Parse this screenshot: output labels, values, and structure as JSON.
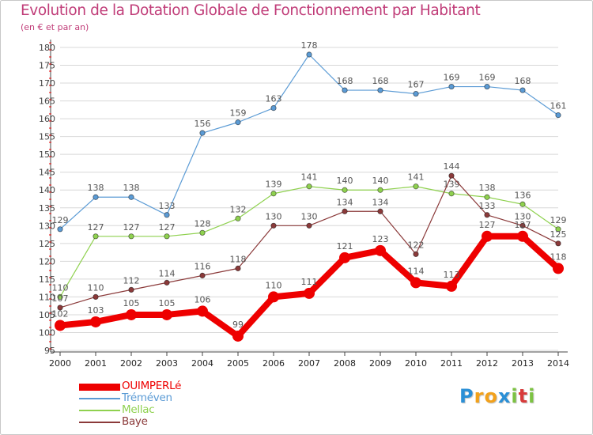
{
  "header": {
    "title": "Evolution de la Dotation Globale de Fonctionnement par Habitant",
    "subtitle": "(en € et par an)"
  },
  "logo": {
    "letters": [
      "P",
      "r",
      "o",
      "x",
      "i",
      "t",
      "i"
    ],
    "colors": [
      "#2a8fd6",
      "#f2a11b",
      "#f2a11b",
      "#2a8fd6",
      "#7cc242",
      "#d83b3b",
      "#7cc242"
    ]
  },
  "colors": {
    "title": "#c03c78",
    "axis": "#6a6a6a",
    "grid": "#d8d8d8",
    "border": "#c8c8c8"
  },
  "chart_data": {
    "type": "line",
    "x": [
      2000,
      2001,
      2002,
      2003,
      2004,
      2005,
      2006,
      2007,
      2008,
      2009,
      2010,
      2011,
      2012,
      2013,
      2014
    ],
    "ylim": [
      95,
      180
    ],
    "yticks": [
      95,
      100,
      105,
      110,
      115,
      120,
      125,
      130,
      135,
      140,
      145,
      150,
      155,
      160,
      165,
      170,
      175,
      180
    ],
    "grid": "horizontal",
    "legend_position": "bottom-left",
    "series": [
      {
        "name": "Tréméven",
        "color": "#5b9bd5",
        "values": [
          129,
          138,
          138,
          133,
          156,
          159,
          163,
          178,
          168,
          168,
          167,
          169,
          169,
          168,
          161
        ]
      },
      {
        "name": "Mellac",
        "color": "#8fd14f",
        "values": [
          110,
          127,
          127,
          127,
          128,
          132,
          139,
          141,
          140,
          140,
          141,
          139,
          138,
          136,
          129
        ]
      },
      {
        "name": "Baye",
        "color": "#8b3a3a",
        "values": [
          107,
          110,
          112,
          114,
          116,
          118,
          130,
          130,
          134,
          134,
          122,
          144,
          133,
          130,
          125
        ]
      },
      {
        "name": "OUIMPERLé",
        "color": "#ee0000",
        "values": [
          102,
          103,
          105,
          105,
          106,
          99,
          110,
          111,
          121,
          123,
          114,
          113,
          127,
          127,
          118
        ]
      }
    ],
    "legend": [
      "OUIMPERLé",
      "Tréméven",
      "Mellac",
      "Baye"
    ]
  }
}
